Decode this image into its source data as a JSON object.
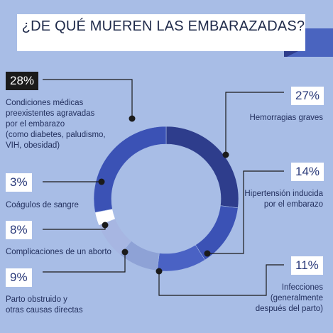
{
  "title": "¿DE QUÉ MUEREN LAS EMBARAZADAS?",
  "colors": {
    "background": "#a8bde6",
    "banner": "#ffffff",
    "banner_tail": "#4a64bf",
    "seg_dark_navy": "#2e3d8c",
    "seg_blue": "#3b52b5",
    "seg_mid": "#4a62c4",
    "seg_light": "#8ea2d6",
    "seg_pale": "#a7b6e2",
    "seg_white": "#ffffff",
    "callout_line": "#1b1b1b"
  },
  "chart_data": {
    "type": "pie",
    "title": "¿DE QUÉ MUEREN LAS EMBARAZADAS?",
    "slices": [
      {
        "label": "Condiciones médicas preexistentes agravadas por el embarazo (como diabetes, paludismo, VIH, obesidad)",
        "value": 28,
        "display": "28%",
        "color": "#3b52b5"
      },
      {
        "label": "Hemorragias graves",
        "value": 27,
        "display": "27%",
        "color": "#2e3d8c"
      },
      {
        "label": "Hipertensión inducida por el embarazo",
        "value": 14,
        "display": "14%",
        "color": "#3b52b5"
      },
      {
        "label": "Infecciones (generalmente después del parto)",
        "value": 11,
        "display": "11%",
        "color": "#4a62c4"
      },
      {
        "label": "Parto obstruido y otras causas directas",
        "value": 9,
        "display": "9%",
        "color": "#8ea2d6"
      },
      {
        "label": "Complicaciones de un aborto",
        "value": 8,
        "display": "8%",
        "color": "#a7b6e2"
      },
      {
        "label": "Coágulos de sangre",
        "value": 3,
        "display": "3%",
        "color": "#ffffff"
      }
    ],
    "legend": "callouts"
  },
  "labels": {
    "cond": {
      "pct": "28%",
      "lines": [
        "Condiciones médicas",
        "preexistentes agravadas",
        "por el embarazo",
        "(como diabetes, paludismo,",
        "VIH, obesidad)"
      ]
    },
    "hemo": {
      "pct": "27%",
      "lines": [
        "Hemorragias graves"
      ]
    },
    "hiper": {
      "pct": "14%",
      "lines": [
        "Hipertensión inducida",
        "por el embarazo"
      ]
    },
    "infec": {
      "pct": "11%",
      "lines": [
        "Infecciones",
        "(generalmente",
        "después del parto)"
      ]
    },
    "parto": {
      "pct": "9%",
      "lines": [
        "Parto obstruido y",
        "otras causas directas"
      ]
    },
    "aborto": {
      "pct": "8%",
      "lines": [
        "Complicaciones de un aborto"
      ]
    },
    "coag": {
      "pct": "3%",
      "lines": [
        "Coágulos de sangre"
      ]
    }
  }
}
